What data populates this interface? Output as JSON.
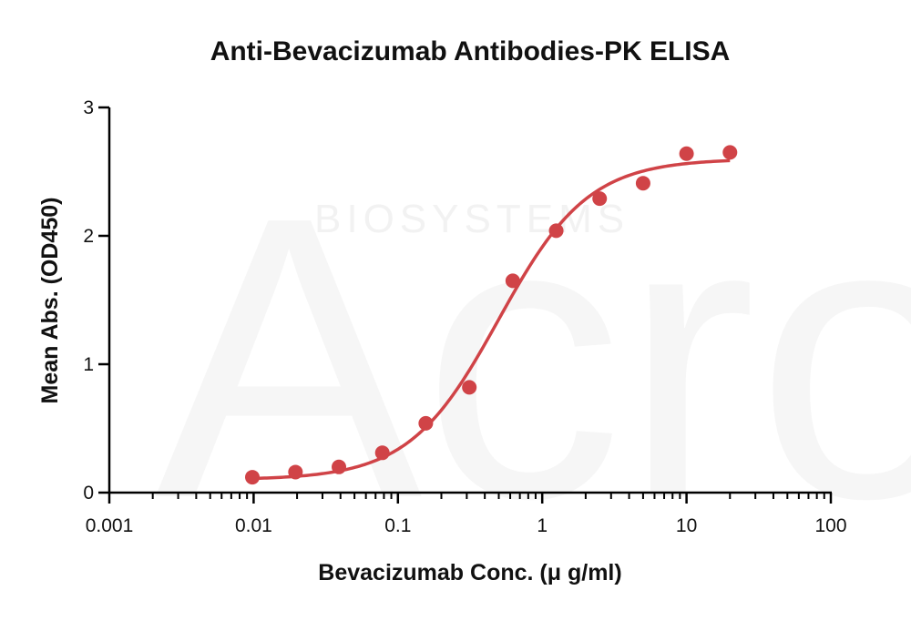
{
  "watermark": {
    "logo_text": "Acro",
    "sub_text": "BIOSYSTEMS"
  },
  "chart_data": {
    "type": "scatter",
    "title": "Anti-Bevacizumab Antibodies-PK ELISA",
    "xlabel": "Bevacizumab Conc. (μ g/ml)",
    "ylabel": "Mean Abs. (OD450)",
    "x_scale": "log",
    "xlim": [
      0.001,
      100
    ],
    "ylim": [
      0,
      3
    ],
    "x_ticks": [
      0.001,
      0.01,
      0.1,
      1,
      10,
      100
    ],
    "x_tick_labels": [
      "0.001",
      "0.01",
      "0.1",
      "1",
      "10",
      "100"
    ],
    "y_ticks": [
      0,
      1,
      2,
      3
    ],
    "y_tick_labels": [
      "0",
      "1",
      "2",
      "3"
    ],
    "grid": false,
    "legend": "none",
    "series": [
      {
        "color": "#d04347",
        "points": [
          {
            "x": 0.0098,
            "y": 0.12
          },
          {
            "x": 0.0195,
            "y": 0.16
          },
          {
            "x": 0.039,
            "y": 0.2
          },
          {
            "x": 0.078,
            "y": 0.31
          },
          {
            "x": 0.156,
            "y": 0.54
          },
          {
            "x": 0.3125,
            "y": 0.82
          },
          {
            "x": 0.625,
            "y": 1.65
          },
          {
            "x": 1.25,
            "y": 2.04
          },
          {
            "x": 2.5,
            "y": 2.29
          },
          {
            "x": 5,
            "y": 2.41
          },
          {
            "x": 10,
            "y": 2.64
          },
          {
            "x": 20,
            "y": 2.65
          }
        ],
        "fit": {
          "model": "4PL",
          "bottom": 0.1,
          "top": 2.6,
          "ec50": 0.5,
          "hill": 1.4,
          "x_range": [
            0.0098,
            20
          ]
        }
      }
    ]
  }
}
